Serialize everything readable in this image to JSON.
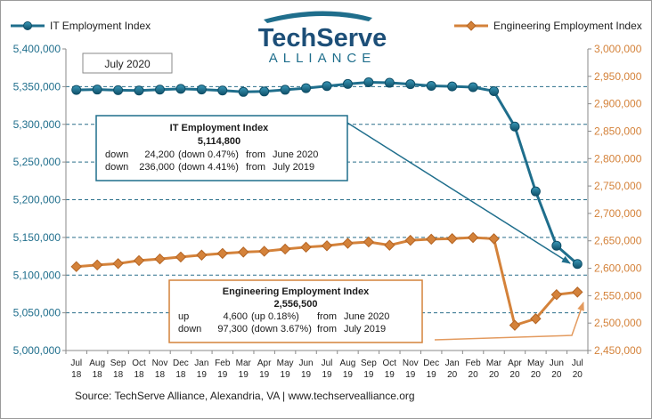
{
  "logo": {
    "main": "TechServe",
    "sub": "ALLIANCE"
  },
  "month_badge": "July 2020",
  "source": "Source: TechServe Alliance, Alexandria, VA | www.techservealliance.org",
  "colors": {
    "it": "#1f6e8c",
    "eng": "#d4823a",
    "left_axis_text": "#1f6e8c",
    "right_axis_text": "#d4823a",
    "grid": "#2a6f8a"
  },
  "it_box": {
    "title": "IT Employment Index",
    "value": "5,114,800",
    "rows": [
      [
        "down",
        "24,200",
        "(down 0.47%)",
        "from",
        "June 2020"
      ],
      [
        "down",
        "236,000",
        "(down 4.41%)",
        "from",
        "July 2019"
      ]
    ]
  },
  "eng_box": {
    "title": "Engineering Employment Index",
    "value": "2,556,500",
    "rows": [
      [
        "up",
        "4,600",
        "(up  0.18%)",
        "from",
        "June 2020"
      ],
      [
        "down",
        "97,300",
        "(down 3.67%)",
        "from",
        "July 2019"
      ]
    ]
  },
  "chart_data": {
    "type": "line",
    "categories": [
      [
        "Jul",
        "18"
      ],
      [
        "Aug",
        "18"
      ],
      [
        "Sep",
        "18"
      ],
      [
        "Oct",
        "18"
      ],
      [
        "Nov",
        "18"
      ],
      [
        "Dec",
        "18"
      ],
      [
        "Jan",
        "19"
      ],
      [
        "Feb",
        "19"
      ],
      [
        "Mar",
        "19"
      ],
      [
        "Apr",
        "19"
      ],
      [
        "May",
        "19"
      ],
      [
        "Jun",
        "19"
      ],
      [
        "Jul",
        "19"
      ],
      [
        "Aug",
        "19"
      ],
      [
        "Sep",
        "19"
      ],
      [
        "Oct",
        "19"
      ],
      [
        "Nov",
        "19"
      ],
      [
        "Dec",
        "19"
      ],
      [
        "Jan",
        "20"
      ],
      [
        "Feb",
        "20"
      ],
      [
        "Mar",
        "20"
      ],
      [
        "Apr",
        "20"
      ],
      [
        "May",
        "20"
      ],
      [
        "Jun",
        "20"
      ],
      [
        "Jul",
        "20"
      ]
    ],
    "series": [
      {
        "name": "IT Employment Index",
        "axis": "left",
        "values": [
          5345600,
          5346100,
          5345300,
          5344800,
          5346000,
          5347000,
          5346200,
          5344900,
          5343000,
          5343600,
          5345800,
          5348000,
          5350800,
          5353500,
          5355700,
          5355100,
          5353200,
          5351000,
          5350300,
          5349300,
          5344000,
          5297000,
          5211000,
          5139000,
          5114800
        ]
      },
      {
        "name": "Engineering Employment Index",
        "axis": "right",
        "values": [
          2603000,
          2606000,
          2608500,
          2614000,
          2617000,
          2620500,
          2624000,
          2627000,
          2629500,
          2631000,
          2635000,
          2638500,
          2641000,
          2645500,
          2648000,
          2642000,
          2651000,
          2653000,
          2654000,
          2656000,
          2653800,
          2496000,
          2508000,
          2551900,
          2556500
        ]
      }
    ],
    "y_left": {
      "min": 5000000,
      "max": 5400000,
      "step": 50000,
      "ticks": [
        "5,000,000",
        "5,050,000",
        "5,100,000",
        "5,150,000",
        "5,200,000",
        "5,250,000",
        "5,300,000",
        "5,350,000",
        "5,400,000"
      ]
    },
    "y_right": {
      "min": 2450000,
      "max": 3000000,
      "step": 50000,
      "ticks": [
        "2,450,000",
        "2,500,000",
        "2,550,000",
        "2,600,000",
        "2,650,000",
        "2,700,000",
        "2,750,000",
        "2,800,000",
        "2,850,000",
        "2,900,000",
        "2,950,000",
        "3,000,000"
      ]
    },
    "grid": true,
    "legend_placement": "top"
  }
}
